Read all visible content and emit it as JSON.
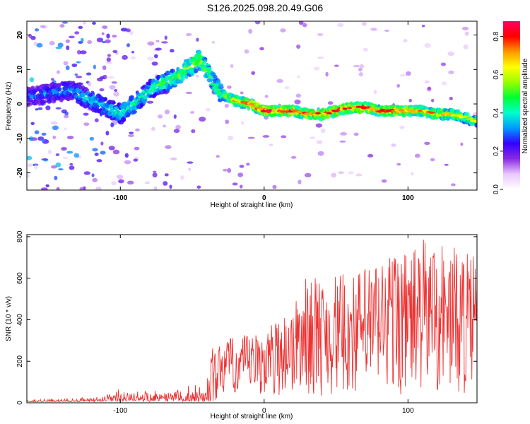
{
  "title": "S126.2025.098.20.49.G06",
  "chart_data": [
    {
      "type": "heatmap",
      "xlabel": "Height of straight line (km)",
      "ylabel": "Frequency (Hz)",
      "xlim": [
        -165,
        148
      ],
      "ylim": [
        -25,
        24
      ],
      "xticks": [
        -100,
        0,
        100
      ],
      "yticks": [
        -20,
        -10,
        0,
        10,
        20
      ],
      "colorbar": {
        "label": "Normalized spectral amplitude",
        "range": [
          0,
          0.88
        ],
        "ticks": [
          0.0,
          0.2,
          0.4,
          0.6,
          0.8
        ],
        "colors": [
          "#ffffff",
          "#e9c9ff",
          "#8a2be2",
          "#3300ff",
          "#0099ff",
          "#00ffcc",
          "#00ff33",
          "#99ff00",
          "#ffff00",
          "#ff9900",
          "#ff0000",
          "#ff0066"
        ]
      },
      "ridge": {
        "x": [
          -165,
          -150,
          -135,
          -120,
          -110,
          -100,
          -90,
          -80,
          -70,
          -60,
          -55,
          -50,
          -45,
          -40,
          -35,
          -30,
          -25,
          -20,
          -10,
          0,
          10,
          20,
          30,
          40,
          50,
          60,
          70,
          80,
          90,
          100,
          110,
          120,
          130,
          140,
          148
        ],
        "freq": [
          2,
          3,
          4,
          1,
          -1,
          -3,
          0,
          4,
          6,
          8,
          10,
          11,
          13,
          10,
          6,
          3,
          2,
          1,
          0,
          -2,
          -2,
          -2,
          -3,
          -3,
          -2,
          -1,
          -1,
          -2,
          -2,
          -2,
          -2,
          -3,
          -3,
          -4,
          -5
        ],
        "amp": [
          0.3,
          0.35,
          0.35,
          0.4,
          0.4,
          0.45,
          0.45,
          0.45,
          0.5,
          0.55,
          0.55,
          0.6,
          0.6,
          0.55,
          0.5,
          0.55,
          0.6,
          0.7,
          0.75,
          0.8,
          0.8,
          0.8,
          0.75,
          0.75,
          0.8,
          0.75,
          0.8,
          0.75,
          0.8,
          0.7,
          0.7,
          0.7,
          0.65,
          0.6,
          0.6
        ]
      }
    },
    {
      "type": "line",
      "xlabel": "Height of straight line (km)",
      "ylabel": "SNR (10 * v/v)",
      "xlim": [
        -165,
        148
      ],
      "ylim": [
        0,
        810
      ],
      "xticks": [
        -100,
        0,
        100
      ],
      "yticks": [
        0,
        200,
        400,
        600,
        800
      ],
      "color": "#ee3333",
      "envelope": {
        "x": [
          -165,
          -150,
          -130,
          -110,
          -100,
          -90,
          -80,
          -70,
          -60,
          -50,
          -46,
          -40,
          -35,
          -30,
          -20,
          -10,
          0,
          10,
          20,
          30,
          40,
          50,
          60,
          70,
          80,
          90,
          100,
          110,
          120,
          130,
          140,
          148
        ],
        "y_max": [
          20,
          20,
          25,
          40,
          80,
          90,
          100,
          100,
          110,
          110,
          90,
          180,
          330,
          300,
          320,
          330,
          340,
          420,
          470,
          620,
          600,
          620,
          620,
          660,
          700,
          760,
          730,
          790,
          810,
          760,
          740,
          700
        ]
      }
    }
  ]
}
